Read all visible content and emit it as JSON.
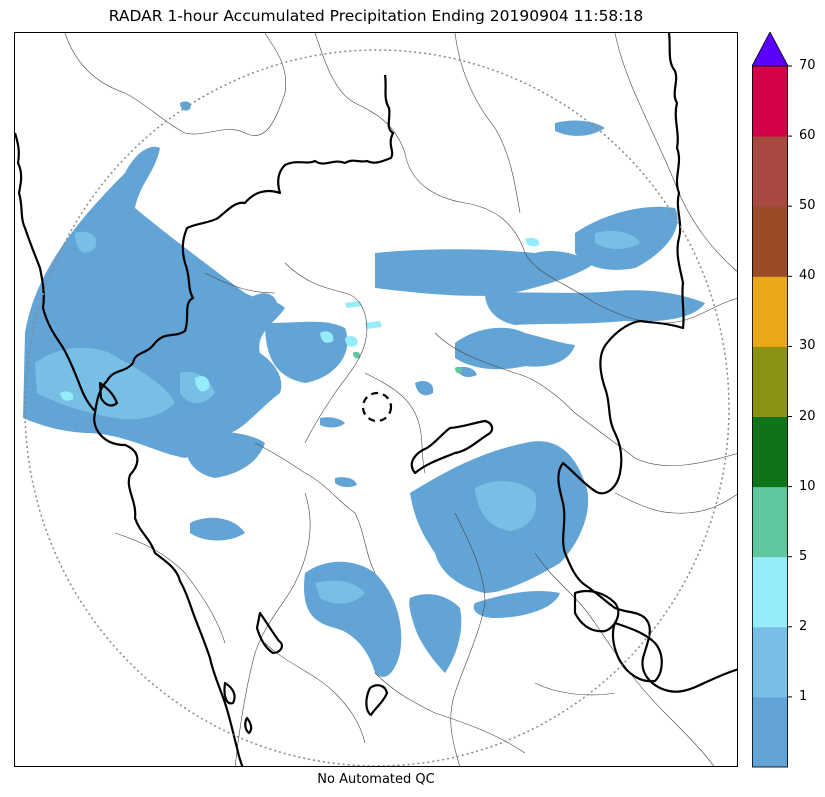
{
  "title": "RADAR 1-hour Accumulated Precipitation Ending 20190904 11:58:18",
  "caption": "No Automated QC",
  "map": {
    "radar_range_ring": "dotted",
    "radar_site_marker": "dashed-circle",
    "coastline_color": "#000000",
    "state_border_color": "#000000",
    "district_border_color": "#444444"
  },
  "colorbar": {
    "extend": "max",
    "over_color": "#5a00ff",
    "bins": [
      {
        "upper": 1,
        "color": "#63a4d6"
      },
      {
        "upper": 2,
        "color": "#77bfe4"
      },
      {
        "upper": 5,
        "color": "#95ecfa"
      },
      {
        "upper": 10,
        "color": "#5ec79d"
      },
      {
        "upper": 20,
        "color": "#0f7419"
      },
      {
        "upper": 30,
        "color": "#8c9314"
      },
      {
        "upper": 40,
        "color": "#e8a81a"
      },
      {
        "upper": 50,
        "color": "#9a4b28"
      },
      {
        "upper": 60,
        "color": "#a84a42"
      },
      {
        "upper": 70,
        "color": "#d4014a"
      }
    ],
    "tick_labels": [
      "1",
      "2",
      "5",
      "10",
      "20",
      "30",
      "40",
      "50",
      "60",
      "70"
    ]
  }
}
